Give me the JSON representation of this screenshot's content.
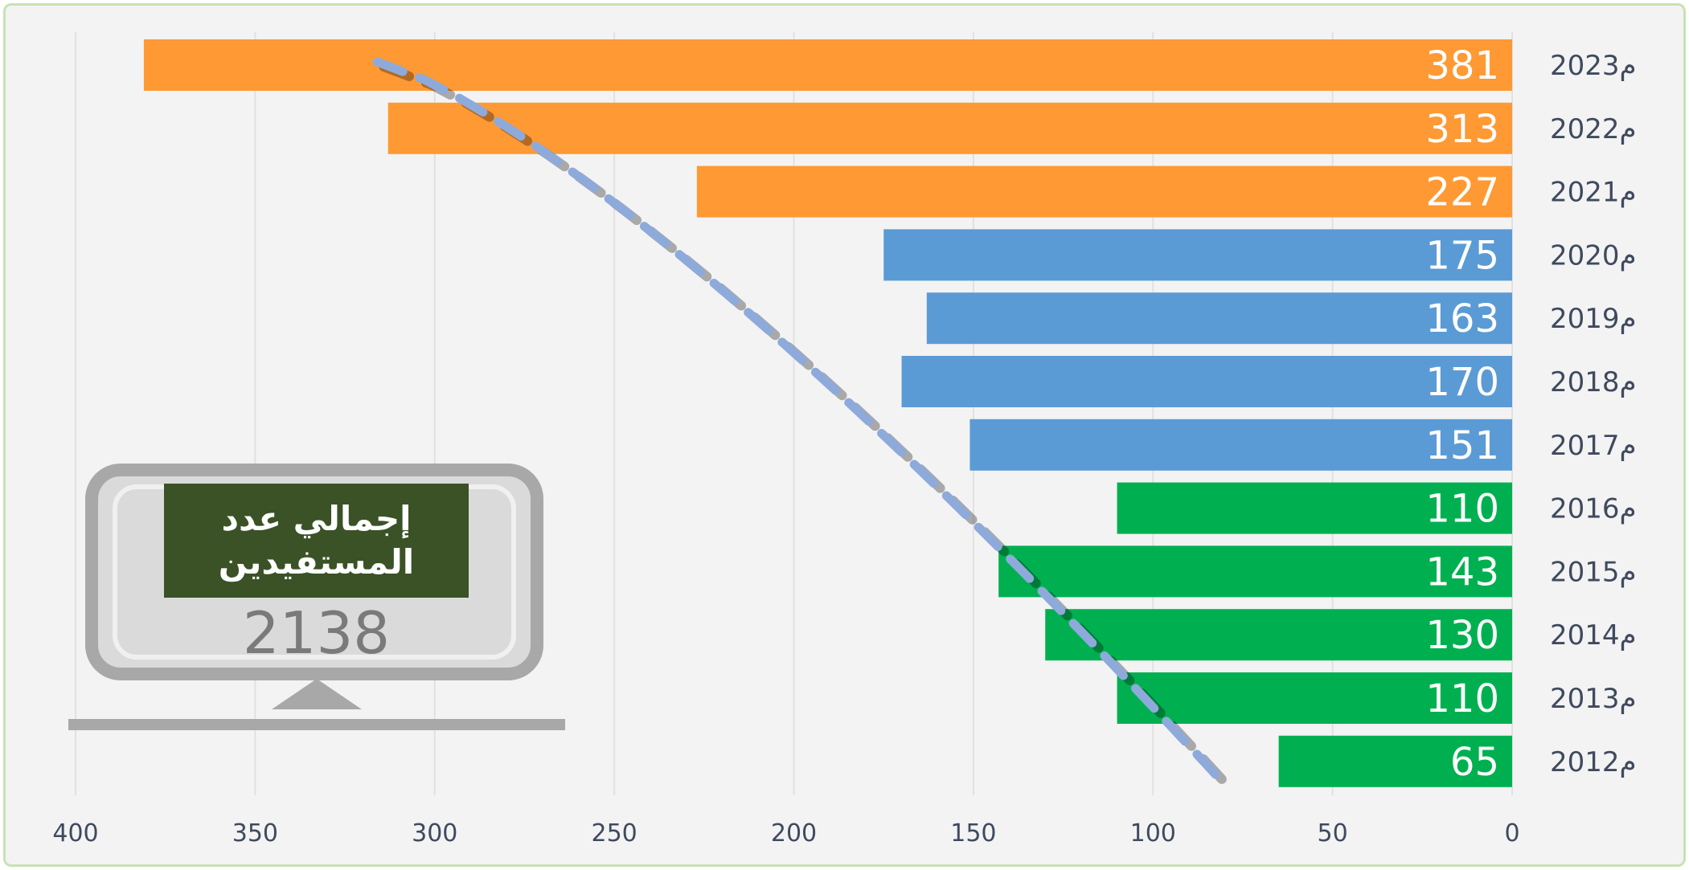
{
  "chart_data": {
    "type": "bar",
    "orientation": "horizontal-reversed",
    "categories": [
      "2023م",
      "2022م",
      "2021م",
      "2020م",
      "2019م",
      "2018م",
      "2017م",
      "2016م",
      "2015م",
      "2014م",
      "2013م",
      "2012م"
    ],
    "values": [
      381,
      313,
      227,
      175,
      163,
      170,
      151,
      110,
      143,
      130,
      110,
      65
    ],
    "bar_colors": [
      "#ff9933",
      "#ff9933",
      "#ff9933",
      "#5b9bd5",
      "#5b9bd5",
      "#5b9bd5",
      "#5b9bd5",
      "#00b050",
      "#00b050",
      "#00b050",
      "#00b050",
      "#00b050"
    ],
    "xlim": [
      0,
      400
    ],
    "x_ticks": [
      0,
      50,
      100,
      150,
      200,
      250,
      300,
      350,
      400
    ],
    "grid": true,
    "trendline": {
      "style": "dashed",
      "color": "#8eaadb"
    },
    "title": "",
    "xlabel": "",
    "ylabel": ""
  },
  "total_box": {
    "title": "إجمالي عدد المستفيدين",
    "value": "2138"
  }
}
